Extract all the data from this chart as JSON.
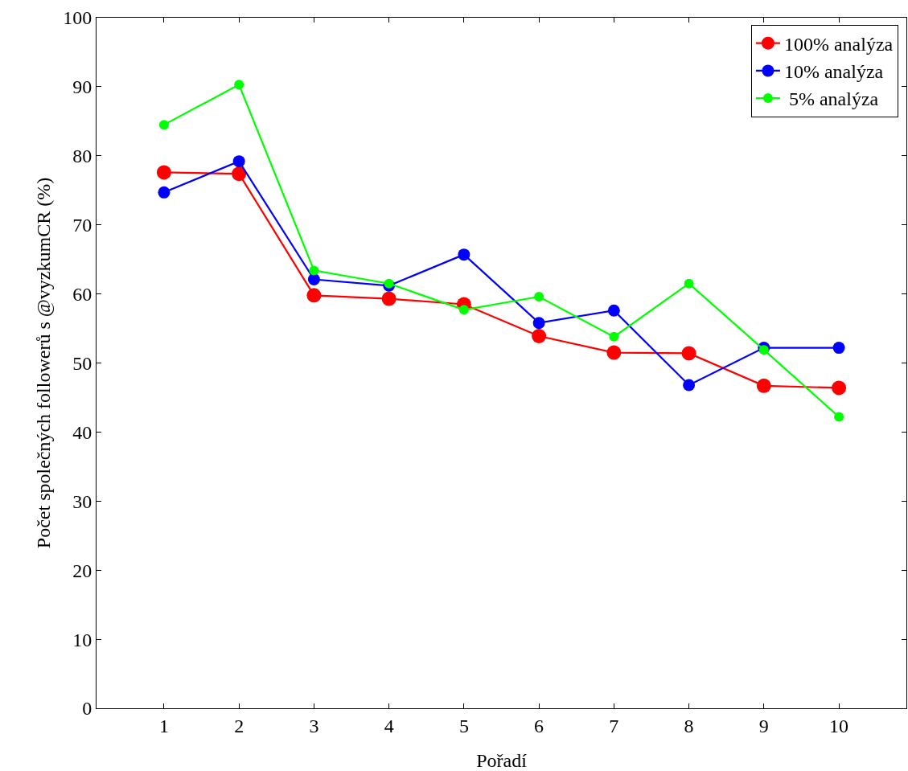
{
  "chart_data": {
    "type": "line",
    "xlabel": "Pořadí",
    "ylabel": "Počet společných followerů s @vyzkumCR (%)",
    "x": [
      1,
      2,
      3,
      4,
      5,
      6,
      7,
      8,
      9,
      10
    ],
    "xlim": [
      0.1,
      10.9
    ],
    "xticks": [
      1,
      2,
      3,
      4,
      5,
      6,
      7,
      8,
      9,
      10
    ],
    "ylim": [
      0,
      100
    ],
    "yticks": [
      0,
      10,
      20,
      30,
      40,
      50,
      60,
      70,
      80,
      90,
      100
    ],
    "series": [
      {
        "name": "100% analýza",
        "color": "#ff0000",
        "values": [
          77.6,
          77.4,
          59.8,
          59.3,
          58.5,
          53.9,
          51.5,
          51.4,
          46.7,
          46.4
        ]
      },
      {
        "name": "10% analýza",
        "color": "#0000ff",
        "values": [
          74.7,
          79.2,
          62.1,
          61.2,
          65.7,
          55.8,
          57.6,
          46.8,
          52.2,
          52.2
        ]
      },
      {
        "name": " 5% analýza",
        "color": "#00ff00",
        "values": [
          84.5,
          90.3,
          63.4,
          61.5,
          57.7,
          59.6,
          53.8,
          61.5,
          51.9,
          42.2
        ]
      }
    ],
    "marker": "circle",
    "line_style": "solid",
    "grid": false,
    "legend": "top right"
  }
}
